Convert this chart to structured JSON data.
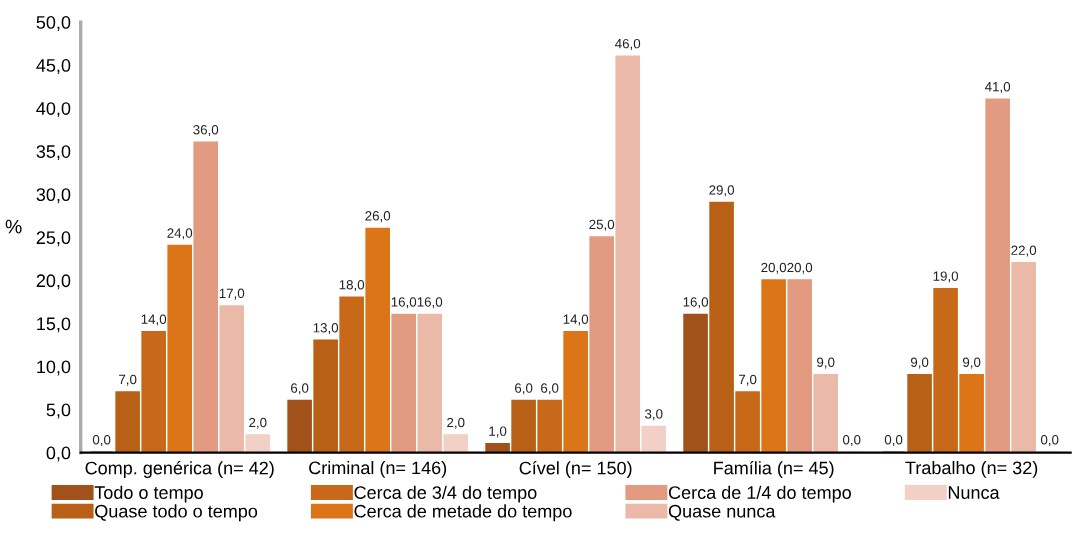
{
  "chart_data": {
    "type": "bar",
    "ylabel": "%",
    "categories": [
      "Comp. genérica (n= 42)",
      "Criminal (n= 146)",
      "Cível (n= 150)",
      "Família (n= 45)",
      "Trabalho (n= 32)"
    ],
    "series": [
      {
        "name": "Todo o tempo",
        "color": "#a0521a",
        "values": [
          0,
          6,
          1,
          16,
          0
        ],
        "value_labels": [
          "0,0",
          "6,0",
          "1,0",
          "16,0",
          "0,0"
        ]
      },
      {
        "name": "Quase todo o tempo",
        "color": "#b86015",
        "values": [
          7,
          13,
          6,
          29,
          9
        ],
        "value_labels": [
          "7,0",
          "13,0",
          "6,0",
          "29,0",
          "9,0"
        ]
      },
      {
        "name": "Cerca de 3/4 do tempo",
        "color": "#c8691a",
        "values": [
          14,
          18,
          6,
          7,
          19
        ],
        "value_labels": [
          "14,0",
          "18,0",
          "6,0",
          "7,0",
          "19,0"
        ]
      },
      {
        "name": "Cerca de metade do tempo",
        "color": "#dc7518",
        "values": [
          24,
          26,
          14,
          20,
          9
        ],
        "value_labels": [
          "24,0",
          "26,0",
          "14,0",
          "20,0",
          "9,0"
        ]
      },
      {
        "name": "Cerca de 1/4 do tempo",
        "color": "#e29a80",
        "values": [
          36,
          16,
          25,
          20,
          41
        ],
        "value_labels": [
          "36,0",
          "16,0",
          "25,0",
          "20,0",
          "41,0"
        ]
      },
      {
        "name": "Quase nunca",
        "color": "#ebb9a8",
        "values": [
          17,
          16,
          46,
          9,
          22
        ],
        "value_labels": [
          "17,0",
          "16,0",
          "46,0",
          "9,0",
          "22,0"
        ]
      },
      {
        "name": "Nunca",
        "color": "#f3d0c6",
        "values": [
          2,
          2,
          3,
          0,
          0
        ],
        "value_labels": [
          "2,0",
          "2,0",
          "3,0",
          "0,0",
          "0,0"
        ]
      }
    ],
    "ylim": [
      0,
      50
    ],
    "yticks": [
      {
        "value": 0,
        "label": "0,0"
      },
      {
        "value": 5,
        "label": "5,0"
      },
      {
        "value": 10,
        "label": "10,0"
      },
      {
        "value": 15,
        "label": "15,0"
      },
      {
        "value": 20,
        "label": "20,0"
      },
      {
        "value": 25,
        "label": "25,0"
      },
      {
        "value": 30,
        "label": "30,0"
      },
      {
        "value": 35,
        "label": "35,0"
      },
      {
        "value": 40,
        "label": "40,0"
      },
      {
        "value": 45,
        "label": "45,0"
      },
      {
        "value": 50,
        "label": "50,0"
      }
    ],
    "grid": false,
    "legend": "bottom"
  }
}
